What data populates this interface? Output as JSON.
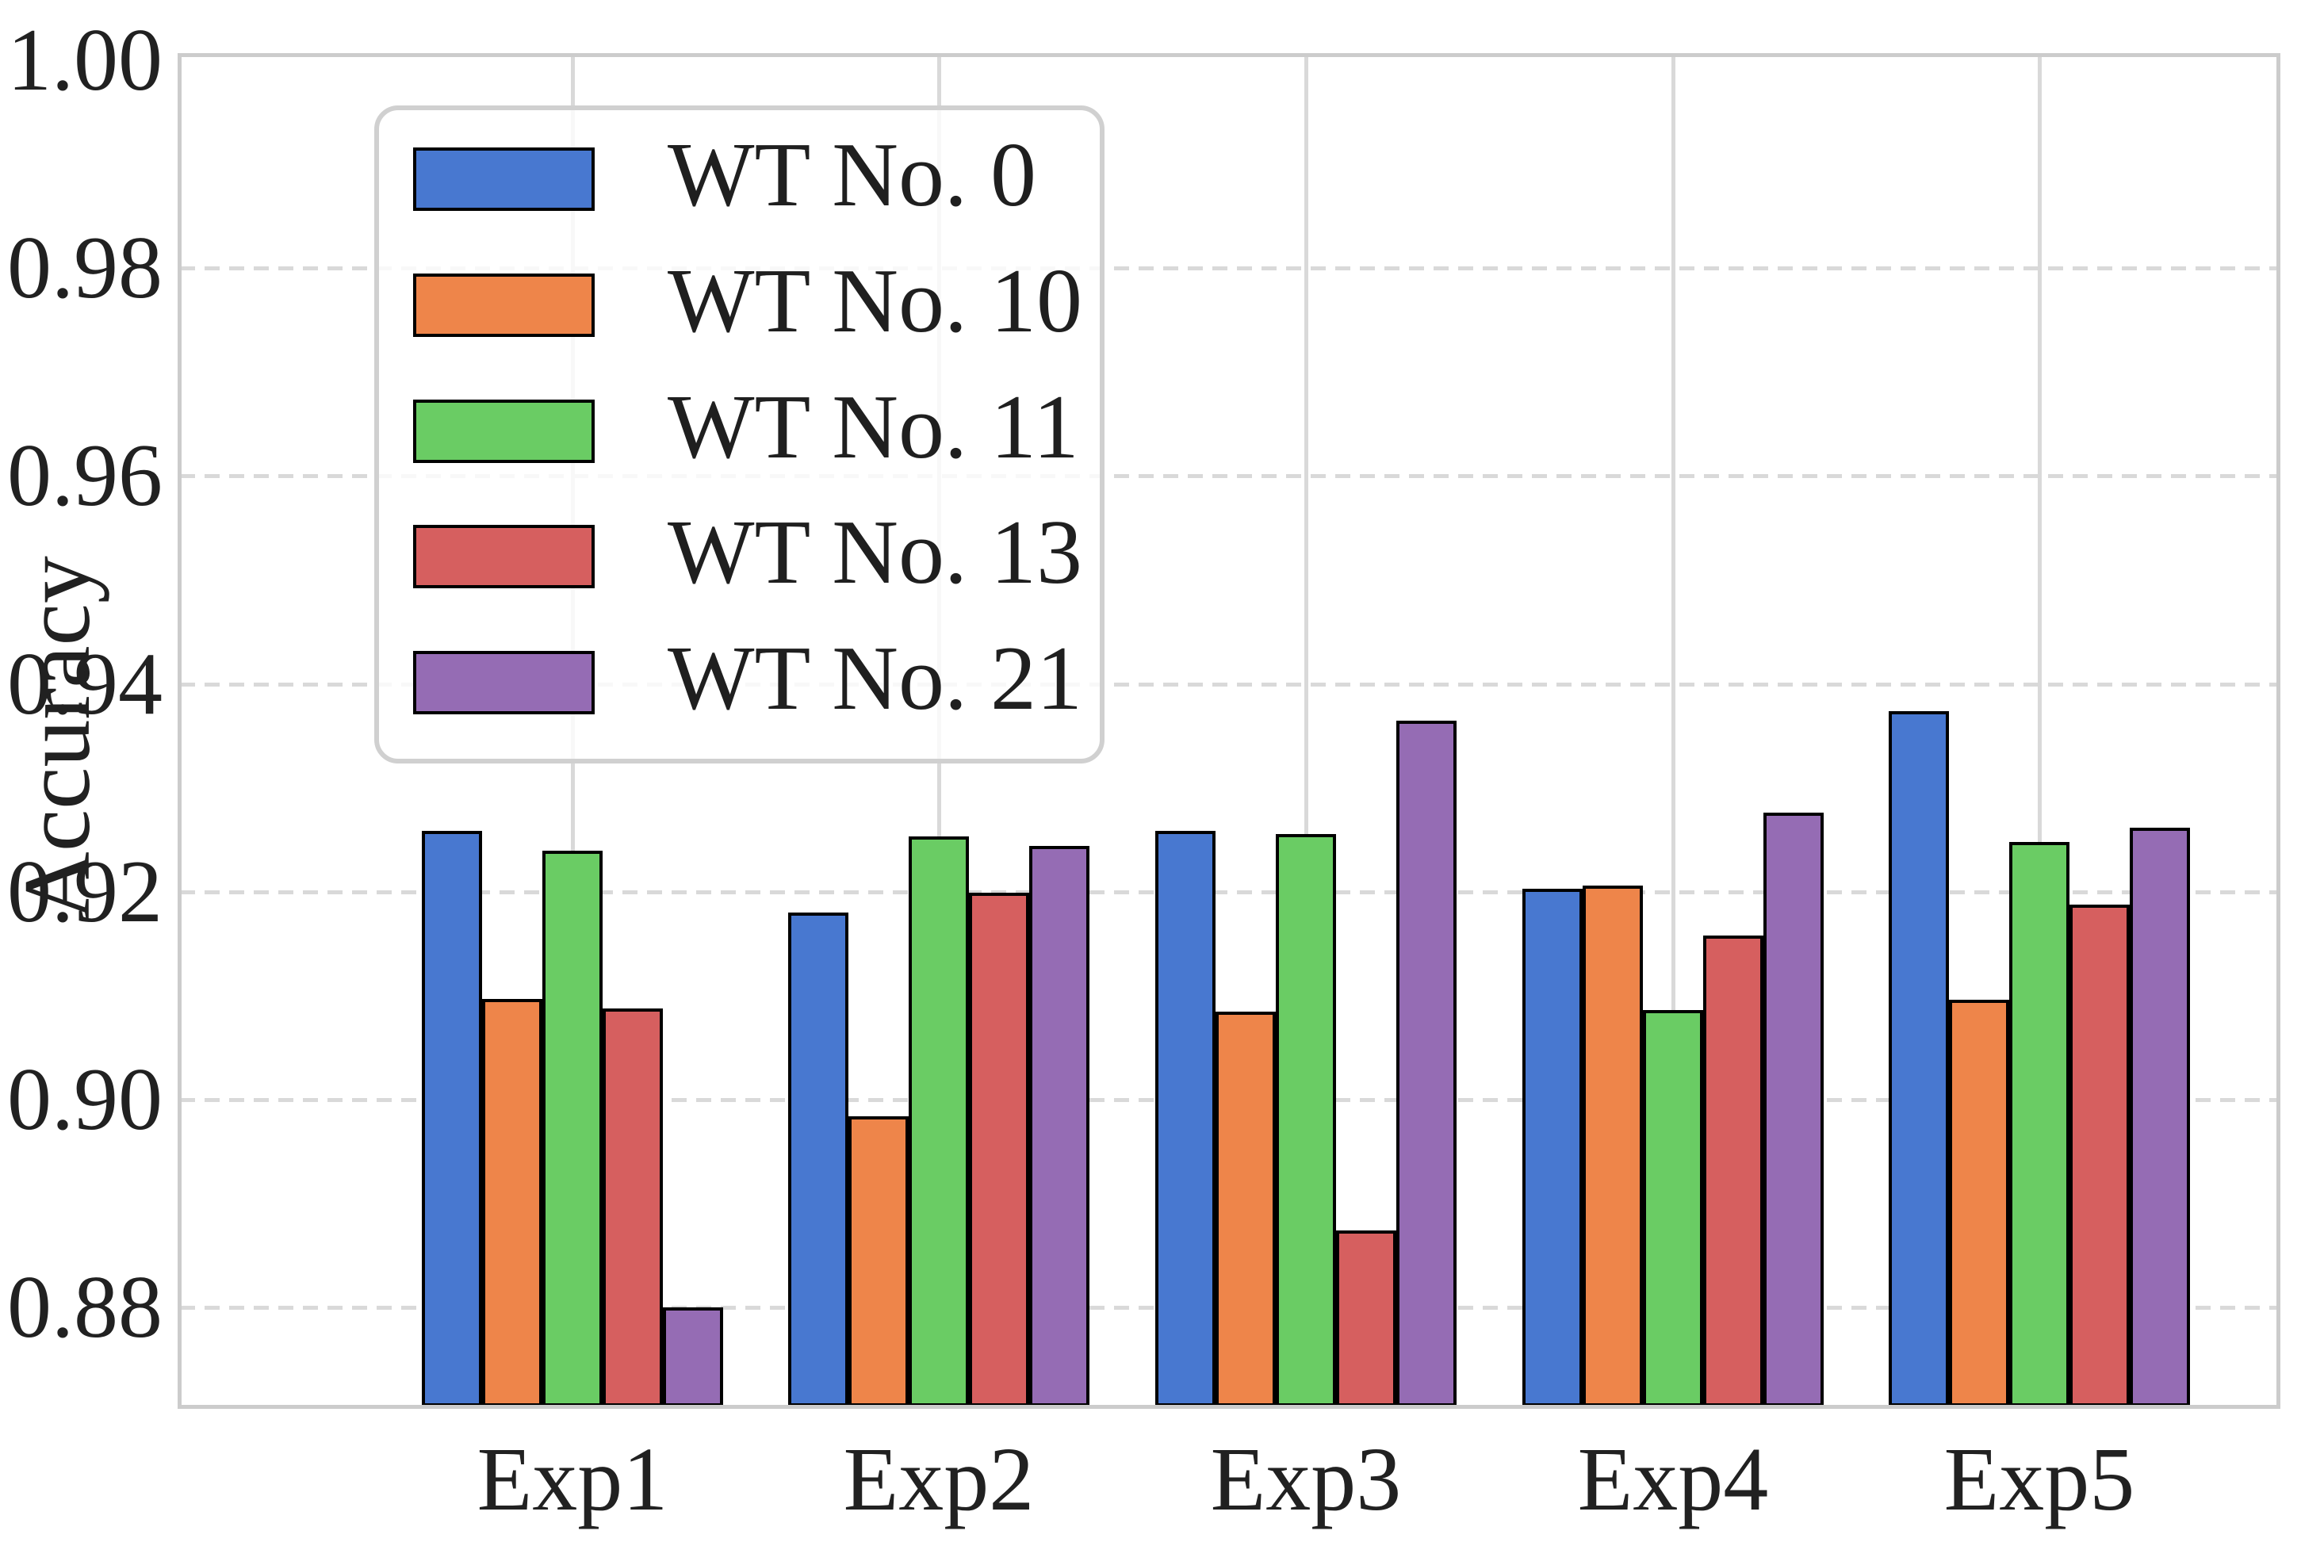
{
  "chart_data": {
    "type": "bar",
    "title": "",
    "xlabel": "",
    "ylabel": "Accuracy",
    "categories": [
      "Exp1",
      "Exp2",
      "Exp3",
      "Exp4",
      "Exp5"
    ],
    "series": [
      {
        "name": "WT No. 0",
        "color": "#4878D0",
        "values": [
          0.9259,
          0.918,
          0.9259,
          0.9203,
          0.9374
        ]
      },
      {
        "name": "WT No. 10",
        "color": "#EE854A",
        "values": [
          0.9097,
          0.8984,
          0.9085,
          0.9206,
          0.9096
        ]
      },
      {
        "name": "WT No. 11",
        "color": "#6ACC64",
        "values": [
          0.924,
          0.9253,
          0.9256,
          0.9086,
          0.9248
        ]
      },
      {
        "name": "WT No. 13",
        "color": "#D65F5F",
        "values": [
          0.9088,
          0.9199,
          0.8874,
          0.9158,
          0.9188
        ]
      },
      {
        "name": "WT No. 21",
        "color": "#956CB4",
        "values": [
          0.88,
          0.9244,
          0.9365,
          0.9276,
          0.9262
        ]
      }
    ],
    "ylim": [
      0.87,
      1.0
    ],
    "yticks": [
      "1.00",
      "0.98",
      "0.96",
      "0.94",
      "0.92",
      "0.90",
      "0.88"
    ],
    "grid": {
      "horizontal": "dashed",
      "vertical": "solid",
      "color": "#d9d9d9"
    },
    "legend_position": "upper left",
    "bar_edge_color": "#000000",
    "spine_color": "#cccccc",
    "text_color": "#212121"
  }
}
